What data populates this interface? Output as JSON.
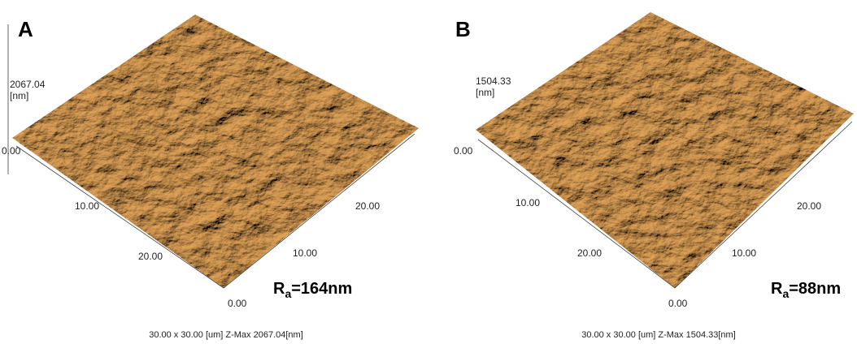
{
  "panels": [
    {
      "label": "A",
      "z_max": "2067.04",
      "z_unit": "[nm]",
      "z_min": "0.00",
      "left_ticks": [
        "10.00",
        "20.00"
      ],
      "origin": "0.00",
      "right_ticks": [
        "10.00",
        "20.00"
      ],
      "ra": {
        "symbol": "R",
        "subscript": "a",
        "value": "=164nm"
      },
      "caption": "30.00 x 30.00 [um]  Z-Max 2067.04[nm]"
    },
    {
      "label": "B",
      "z_max": "1504.33",
      "z_unit": "[nm]",
      "z_min": "0.00",
      "left_ticks": [
        "10.00",
        "20.00"
      ],
      "origin": "0.00",
      "right_ticks": [
        "10.00",
        "20.00"
      ],
      "ra": {
        "symbol": "R",
        "subscript": "a",
        "value": "=88nm"
      },
      "caption": "30.00 x 30.00 [um]  Z-Max 1504.33[nm]"
    }
  ]
}
